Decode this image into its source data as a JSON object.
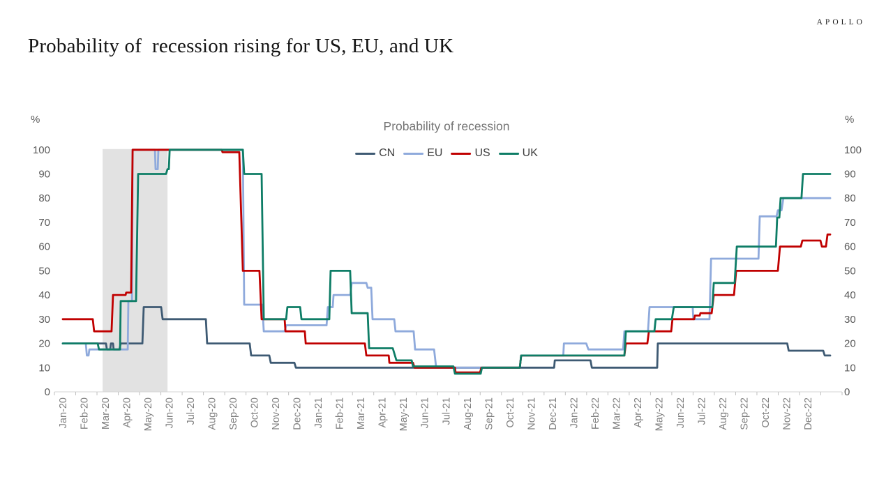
{
  "header": {
    "title": "Probability of  recession rising for US, EU, and UK",
    "brand": "APOLLO"
  },
  "chart_data": {
    "type": "line",
    "title": "Probability of recession",
    "y_axis": {
      "unit": "%",
      "min": 0,
      "max": 100,
      "tick_step": 10,
      "tick_labels": [
        "0",
        "10",
        "20",
        "30",
        "40",
        "50",
        "60",
        "70",
        "80",
        "90",
        "100"
      ],
      "mirrored_right_axis": true
    },
    "x_axis": {
      "tick_labels": [
        "Jan-20",
        "Feb-20",
        "Mar-20",
        "Apr-20",
        "May-20",
        "Jun-20",
        "Jul-20",
        "Aug-20",
        "Sep-20",
        "Oct-20",
        "Nov-20",
        "Dec-20",
        "Jan-21",
        "Feb-21",
        "Mar-21",
        "Apr-21",
        "May-21",
        "Jun-21",
        "Jul-21",
        "Aug-21",
        "Sep-21",
        "Oct-21",
        "Nov-21",
        "Dec-21",
        "Jan-22",
        "Feb-22",
        "Mar-22",
        "Apr-22",
        "May-22",
        "Jun-22",
        "Jul-22",
        "Aug-22",
        "Sep-22",
        "Oct-22",
        "Nov-22",
        "Dec-22"
      ]
    },
    "shaded_region": {
      "name": "recession-shading",
      "x_from_month": 1.87,
      "x_to_month": 4.92,
      "color": "#E2E2E2"
    },
    "legend_position": "top-center",
    "grid": false,
    "series": [
      {
        "name": "CN",
        "color": "#3E5A73",
        "points": [
          [
            0,
            20
          ],
          [
            2.03,
            20
          ],
          [
            2.07,
            17.5
          ],
          [
            2.23,
            17.5
          ],
          [
            2.26,
            20
          ],
          [
            2.36,
            20
          ],
          [
            2.39,
            17.5
          ],
          [
            2.66,
            17.5
          ],
          [
            2.72,
            20
          ],
          [
            3.74,
            20
          ],
          [
            3.8,
            35
          ],
          [
            4.62,
            35
          ],
          [
            4.69,
            30
          ],
          [
            6.72,
            30
          ],
          [
            6.78,
            20
          ],
          [
            8.78,
            20
          ],
          [
            8.85,
            15
          ],
          [
            9.7,
            15
          ],
          [
            9.77,
            12
          ],
          [
            10.88,
            12
          ],
          [
            10.95,
            10
          ],
          [
            23.08,
            10
          ],
          [
            23.11,
            13
          ],
          [
            24.79,
            13
          ],
          [
            24.85,
            10
          ],
          [
            27.92,
            10
          ],
          [
            27.95,
            20
          ],
          [
            34.03,
            20
          ],
          [
            34.1,
            17
          ],
          [
            35.72,
            17
          ],
          [
            35.79,
            15
          ],
          [
            36.05,
            15
          ]
        ]
      },
      {
        "name": "EU",
        "color": "#8FAADC",
        "points": [
          [
            0,
            20
          ],
          [
            1.08,
            20
          ],
          [
            1.13,
            15
          ],
          [
            1.21,
            15
          ],
          [
            1.25,
            17.5
          ],
          [
            3.05,
            17.5
          ],
          [
            3.08,
            37.5
          ],
          [
            3.25,
            37.5
          ],
          [
            3.28,
            100
          ],
          [
            4.33,
            100
          ],
          [
            4.36,
            92
          ],
          [
            4.46,
            92
          ],
          [
            4.49,
            100
          ],
          [
            8.46,
            100
          ],
          [
            8.52,
            36
          ],
          [
            9.37,
            36
          ],
          [
            9.44,
            25
          ],
          [
            10.42,
            25
          ],
          [
            10.49,
            27.5
          ],
          [
            12.39,
            27.5
          ],
          [
            12.45,
            35
          ],
          [
            12.68,
            35
          ],
          [
            12.72,
            40
          ],
          [
            13.51,
            40
          ],
          [
            13.57,
            45
          ],
          [
            14.26,
            45
          ],
          [
            14.32,
            43
          ],
          [
            14.49,
            43
          ],
          [
            14.55,
            30
          ],
          [
            15.57,
            30
          ],
          [
            15.63,
            25
          ],
          [
            16.48,
            25
          ],
          [
            16.55,
            17.5
          ],
          [
            17.44,
            17.5
          ],
          [
            17.54,
            10
          ],
          [
            21.47,
            10
          ],
          [
            21.53,
            15
          ],
          [
            23.51,
            15
          ],
          [
            23.54,
            20
          ],
          [
            24.59,
            20
          ],
          [
            24.69,
            17.5
          ],
          [
            26.32,
            17.5
          ],
          [
            26.38,
            25
          ],
          [
            27.49,
            25
          ],
          [
            27.56,
            35
          ],
          [
            29.59,
            35
          ],
          [
            29.62,
            30
          ],
          [
            30.38,
            30
          ],
          [
            30.45,
            55
          ],
          [
            32.68,
            55
          ],
          [
            32.74,
            72.5
          ],
          [
            33.53,
            72.5
          ],
          [
            33.59,
            75
          ],
          [
            33.76,
            75
          ],
          [
            33.85,
            80
          ],
          [
            36.05,
            80
          ]
        ]
      },
      {
        "name": "US",
        "color": "#C00000",
        "points": [
          [
            0,
            30
          ],
          [
            1.41,
            30
          ],
          [
            1.47,
            25
          ],
          [
            2.29,
            25
          ],
          [
            2.36,
            40
          ],
          [
            2.95,
            40
          ],
          [
            2.98,
            41
          ],
          [
            3.21,
            41
          ],
          [
            3.28,
            100
          ],
          [
            7.47,
            100
          ],
          [
            7.5,
            99
          ],
          [
            8.29,
            99
          ],
          [
            8.46,
            50
          ],
          [
            9.24,
            50
          ],
          [
            9.34,
            30
          ],
          [
            10.42,
            30
          ],
          [
            10.46,
            25
          ],
          [
            11.37,
            25
          ],
          [
            11.41,
            20
          ],
          [
            14.19,
            20
          ],
          [
            14.26,
            15
          ],
          [
            15.31,
            15
          ],
          [
            15.34,
            12
          ],
          [
            16.45,
            12
          ],
          [
            16.52,
            10
          ],
          [
            18.42,
            10
          ],
          [
            18.45,
            8
          ],
          [
            19.6,
            8
          ],
          [
            19.66,
            10
          ],
          [
            21.47,
            10
          ],
          [
            21.53,
            15
          ],
          [
            26.38,
            15
          ],
          [
            26.45,
            20
          ],
          [
            27.46,
            20
          ],
          [
            27.53,
            25
          ],
          [
            28.58,
            25
          ],
          [
            28.64,
            30
          ],
          [
            29.66,
            30
          ],
          [
            29.69,
            31.5
          ],
          [
            29.92,
            31.5
          ],
          [
            29.95,
            32.5
          ],
          [
            30.48,
            32.5
          ],
          [
            30.58,
            40
          ],
          [
            31.53,
            40
          ],
          [
            31.63,
            50
          ],
          [
            33.59,
            50
          ],
          [
            33.69,
            60
          ],
          [
            34.67,
            60
          ],
          [
            34.74,
            62.5
          ],
          [
            35.59,
            62.5
          ],
          [
            35.66,
            60
          ],
          [
            35.85,
            60
          ],
          [
            35.92,
            65
          ],
          [
            36.05,
            65
          ]
        ]
      },
      {
        "name": "UK",
        "color": "#0E7D66",
        "points": [
          [
            0,
            20
          ],
          [
            1.64,
            20
          ],
          [
            1.7,
            17.5
          ],
          [
            2.69,
            17.5
          ],
          [
            2.72,
            37.5
          ],
          [
            3.44,
            37.5
          ],
          [
            3.54,
            90
          ],
          [
            4.85,
            90
          ],
          [
            4.92,
            92
          ],
          [
            4.98,
            92
          ],
          [
            5.02,
            100
          ],
          [
            8.46,
            100
          ],
          [
            8.52,
            90
          ],
          [
            9.34,
            90
          ],
          [
            9.44,
            30
          ],
          [
            10.49,
            30
          ],
          [
            10.55,
            35
          ],
          [
            11.15,
            35
          ],
          [
            11.21,
            30
          ],
          [
            12.52,
            30
          ],
          [
            12.58,
            50
          ],
          [
            13.5,
            50
          ],
          [
            13.57,
            32.5
          ],
          [
            14.32,
            32.5
          ],
          [
            14.39,
            18
          ],
          [
            15.5,
            18
          ],
          [
            15.67,
            13
          ],
          [
            16.39,
            13
          ],
          [
            16.45,
            10.5
          ],
          [
            18.35,
            10.5
          ],
          [
            18.42,
            7.5
          ],
          [
            19.63,
            7.5
          ],
          [
            19.69,
            10
          ],
          [
            21.47,
            10
          ],
          [
            21.53,
            15
          ],
          [
            26.38,
            15
          ],
          [
            26.45,
            25
          ],
          [
            27.79,
            25
          ],
          [
            27.85,
            30
          ],
          [
            28.61,
            30
          ],
          [
            28.7,
            35
          ],
          [
            30.51,
            35
          ],
          [
            30.58,
            45
          ],
          [
            31.56,
            45
          ],
          [
            31.66,
            60
          ],
          [
            33.5,
            60
          ],
          [
            33.56,
            72
          ],
          [
            33.66,
            72
          ],
          [
            33.72,
            80
          ],
          [
            34.7,
            80
          ],
          [
            34.77,
            90
          ],
          [
            36.05,
            90
          ]
        ]
      }
    ]
  }
}
